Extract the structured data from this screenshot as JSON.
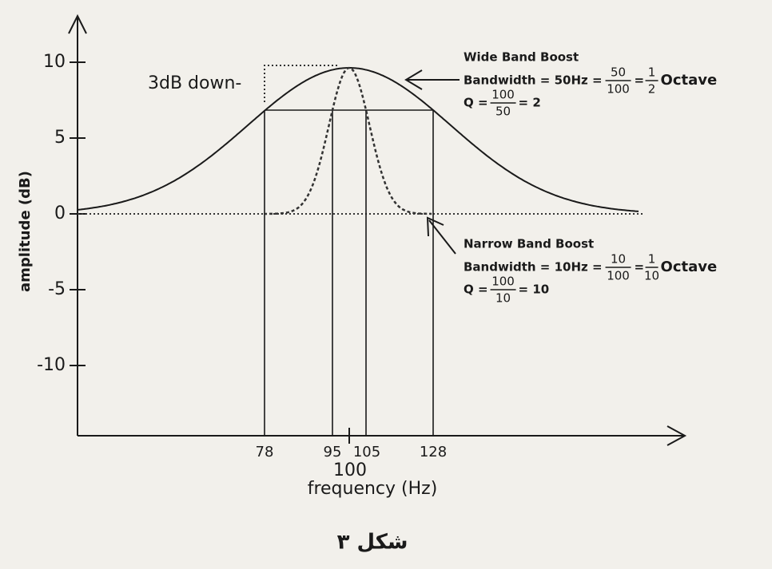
{
  "figure": {
    "caption": "شکل ۳",
    "y_axis_label": "amplitude (dB)",
    "x_axis_label": "frequency (Hz)",
    "y_ticks": [
      "10",
      "5",
      "0",
      "-5",
      "-10"
    ],
    "x_ticks": [
      "78",
      "95",
      "105",
      "128"
    ],
    "x_center": "100",
    "annotation_3db": "3dB down-",
    "wide": {
      "title": "Wide Band Boost",
      "bw_prefix": "Bandwidth = 50Hz =",
      "bw_num": "50",
      "bw_den": "100",
      "eq": "=",
      "oct_num": "1",
      "oct_den": "2",
      "oct_suffix": "Octave",
      "q_prefix": "Q =",
      "q_num": "100",
      "q_den": "50",
      "q_suffix": "= 2"
    },
    "narrow": {
      "title": "Narrow Band Boost",
      "bw_prefix": "Bandwidth = 10Hz =",
      "bw_num": "10",
      "bw_den": "100",
      "eq": "=",
      "oct_num": "1",
      "oct_den": "10",
      "oct_suffix": "Octave",
      "q_prefix": "Q =",
      "q_num": "100",
      "q_den": "10",
      "q_suffix": "= 10"
    }
  }
}
